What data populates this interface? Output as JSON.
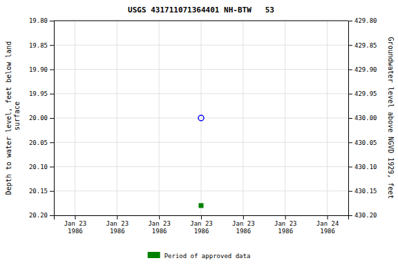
{
  "chart_data": {
    "type": "scatter",
    "title": "USGS 431711071364401 NH-BTW   53",
    "ylabel": "Depth to water level, feet below land\n surface",
    "y2label": "Groundwater level above NGVD 1929, feet",
    "categories": [
      "Jan 23\n1986",
      "Jan 23\n1986",
      "Jan 23\n1986",
      "Jan 23\n1986",
      "Jan 23\n1986",
      "Jan 23\n1986",
      "Jan 24\n1986"
    ],
    "series": [
      {
        "color": "blue",
        "marker": "open-circle",
        "values": [
          null,
          null,
          null,
          20.0,
          null,
          null,
          null
        ]
      },
      {
        "name": "Period of approved data",
        "color": "green",
        "marker": "square",
        "values": [
          null,
          null,
          null,
          20.18,
          null,
          null,
          null
        ]
      }
    ],
    "ylim": [
      20.2,
      19.8
    ],
    "yticks": [
      {
        "value": 19.8,
        "label": "19.80"
      },
      {
        "value": 19.85,
        "label": "19.85"
      },
      {
        "value": 19.9,
        "label": "19.90"
      },
      {
        "value": 19.95,
        "label": "19.95"
      },
      {
        "value": 20.0,
        "label": "20.00"
      },
      {
        "value": 20.05,
        "label": "20.05"
      },
      {
        "value": 20.1,
        "label": "20.10"
      },
      {
        "value": 20.15,
        "label": "20.15"
      },
      {
        "value": 20.2,
        "label": "20.20"
      }
    ],
    "y2lim": [
      430.2,
      429.8
    ],
    "y2ticks": [
      {
        "value": 430.2,
        "label": "430.20"
      },
      {
        "value": 430.15,
        "label": "430.15"
      },
      {
        "value": 430.1,
        "label": "430.10"
      },
      {
        "value": 430.05,
        "label": "430.05"
      },
      {
        "value": 430.0,
        "label": "430.00"
      },
      {
        "value": 429.95,
        "label": "429.95"
      },
      {
        "value": 429.9,
        "label": "429.90"
      },
      {
        "value": 429.85,
        "label": "429.85"
      },
      {
        "value": 429.8,
        "label": "429.80"
      }
    ],
    "grid": true,
    "legend": "bottom"
  }
}
